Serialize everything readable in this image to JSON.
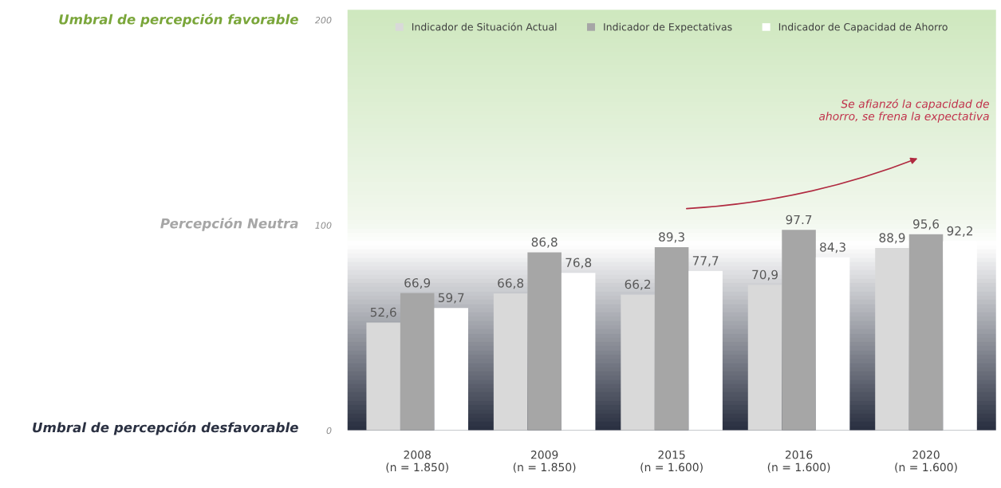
{
  "chart_data": {
    "type": "bar",
    "categories": [
      "2008\n(n = 1.850)",
      "2009\n(n = 1.850)",
      "2015\n(n = 1.600)",
      "2016\n(n = 1.600)",
      "2020\n(n = 1.600)"
    ],
    "series": [
      {
        "name": "Indicador de Situación Actual",
        "color": "#d9d9d9",
        "values": [
          52.6,
          66.8,
          66.2,
          70.9,
          88.9
        ],
        "value_labels": [
          "52,6",
          "66,8",
          "66,2",
          "70,9",
          "88,9"
        ]
      },
      {
        "name": "Indicador de Expectativas",
        "color": "#a6a6a6",
        "values": [
          66.9,
          86.8,
          89.3,
          97.7,
          95.6
        ],
        "value_labels": [
          "66,9",
          "86,8",
          "89,3",
          "97.7",
          "95,6"
        ]
      },
      {
        "name": "Indicador de Capacidad de Ahorro",
        "color": "#ffffff",
        "values": [
          59.7,
          76.8,
          77.7,
          84.3,
          92.2
        ],
        "value_labels": [
          "59,7",
          "76,8",
          "77,7",
          "84,3",
          "92,2"
        ]
      }
    ],
    "ylim": [
      0,
      205
    ],
    "yticks": [
      0,
      100,
      200
    ],
    "annotations": [
      "Umbral de percepción favorable",
      "Percepción Neutra",
      "Umbral de percepción desfavorable",
      "Se afianzó la capacidad de\nahorro, se frena la expectativa"
    ],
    "grid": false,
    "legend": "top"
  }
}
